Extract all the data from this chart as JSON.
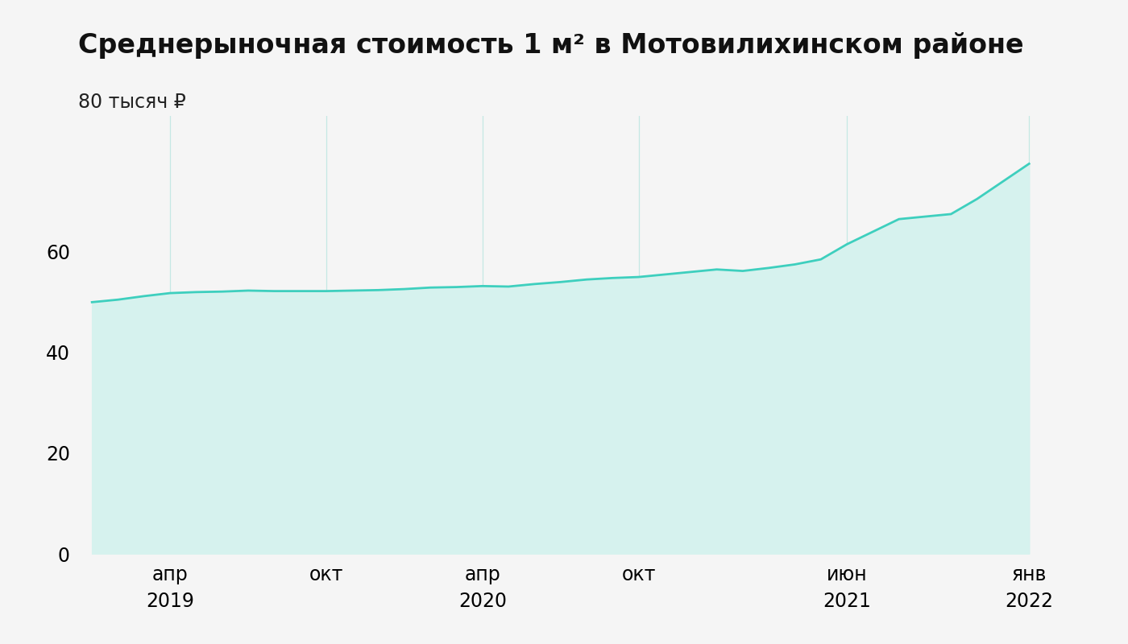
{
  "title": "Среднерыночная стоимость 1 м² в Мотовилихинском районе",
  "ylabel_text": "80 тысяч ₽",
  "background_color": "#f5f5f5",
  "line_color": "#3ecfbe",
  "fill_color": "#d6f2ee",
  "ylim": [
    0,
    87
  ],
  "yticks": [
    0,
    20,
    40,
    60
  ],
  "xtick_data": [
    {
      "label": "апр\n2019",
      "xpos": 3
    },
    {
      "label": "окт",
      "xpos": 9
    },
    {
      "label": "апр\n2020",
      "xpos": 15
    },
    {
      "label": "окт",
      "xpos": 21
    },
    {
      "label": "июн\n2021",
      "xpos": 29
    },
    {
      "label": "янв\n2022",
      "xpos": 36
    }
  ],
  "x_values": [
    0,
    1,
    2,
    3,
    4,
    5,
    6,
    7,
    8,
    9,
    10,
    11,
    12,
    13,
    14,
    15,
    16,
    17,
    18,
    19,
    20,
    21,
    22,
    23,
    24,
    25,
    26,
    27,
    28,
    29,
    30,
    31,
    32,
    33,
    34,
    35,
    36
  ],
  "y_values": [
    50.0,
    50.5,
    51.2,
    51.8,
    52.0,
    52.1,
    52.3,
    52.2,
    52.2,
    52.2,
    52.3,
    52.4,
    52.6,
    52.9,
    53.0,
    53.2,
    53.1,
    53.6,
    54.0,
    54.5,
    54.8,
    55.0,
    55.5,
    56.0,
    56.5,
    56.2,
    56.8,
    57.5,
    58.5,
    61.5,
    64.0,
    66.5,
    67.0,
    67.5,
    70.5,
    74.0,
    77.5
  ],
  "xlim": [
    -0.5,
    38.5
  ],
  "title_fontsize": 24,
  "tick_fontsize": 17,
  "ylabel_fontsize": 17,
  "grid_color": "#c5e8e4",
  "grid_linewidth": 0.9
}
